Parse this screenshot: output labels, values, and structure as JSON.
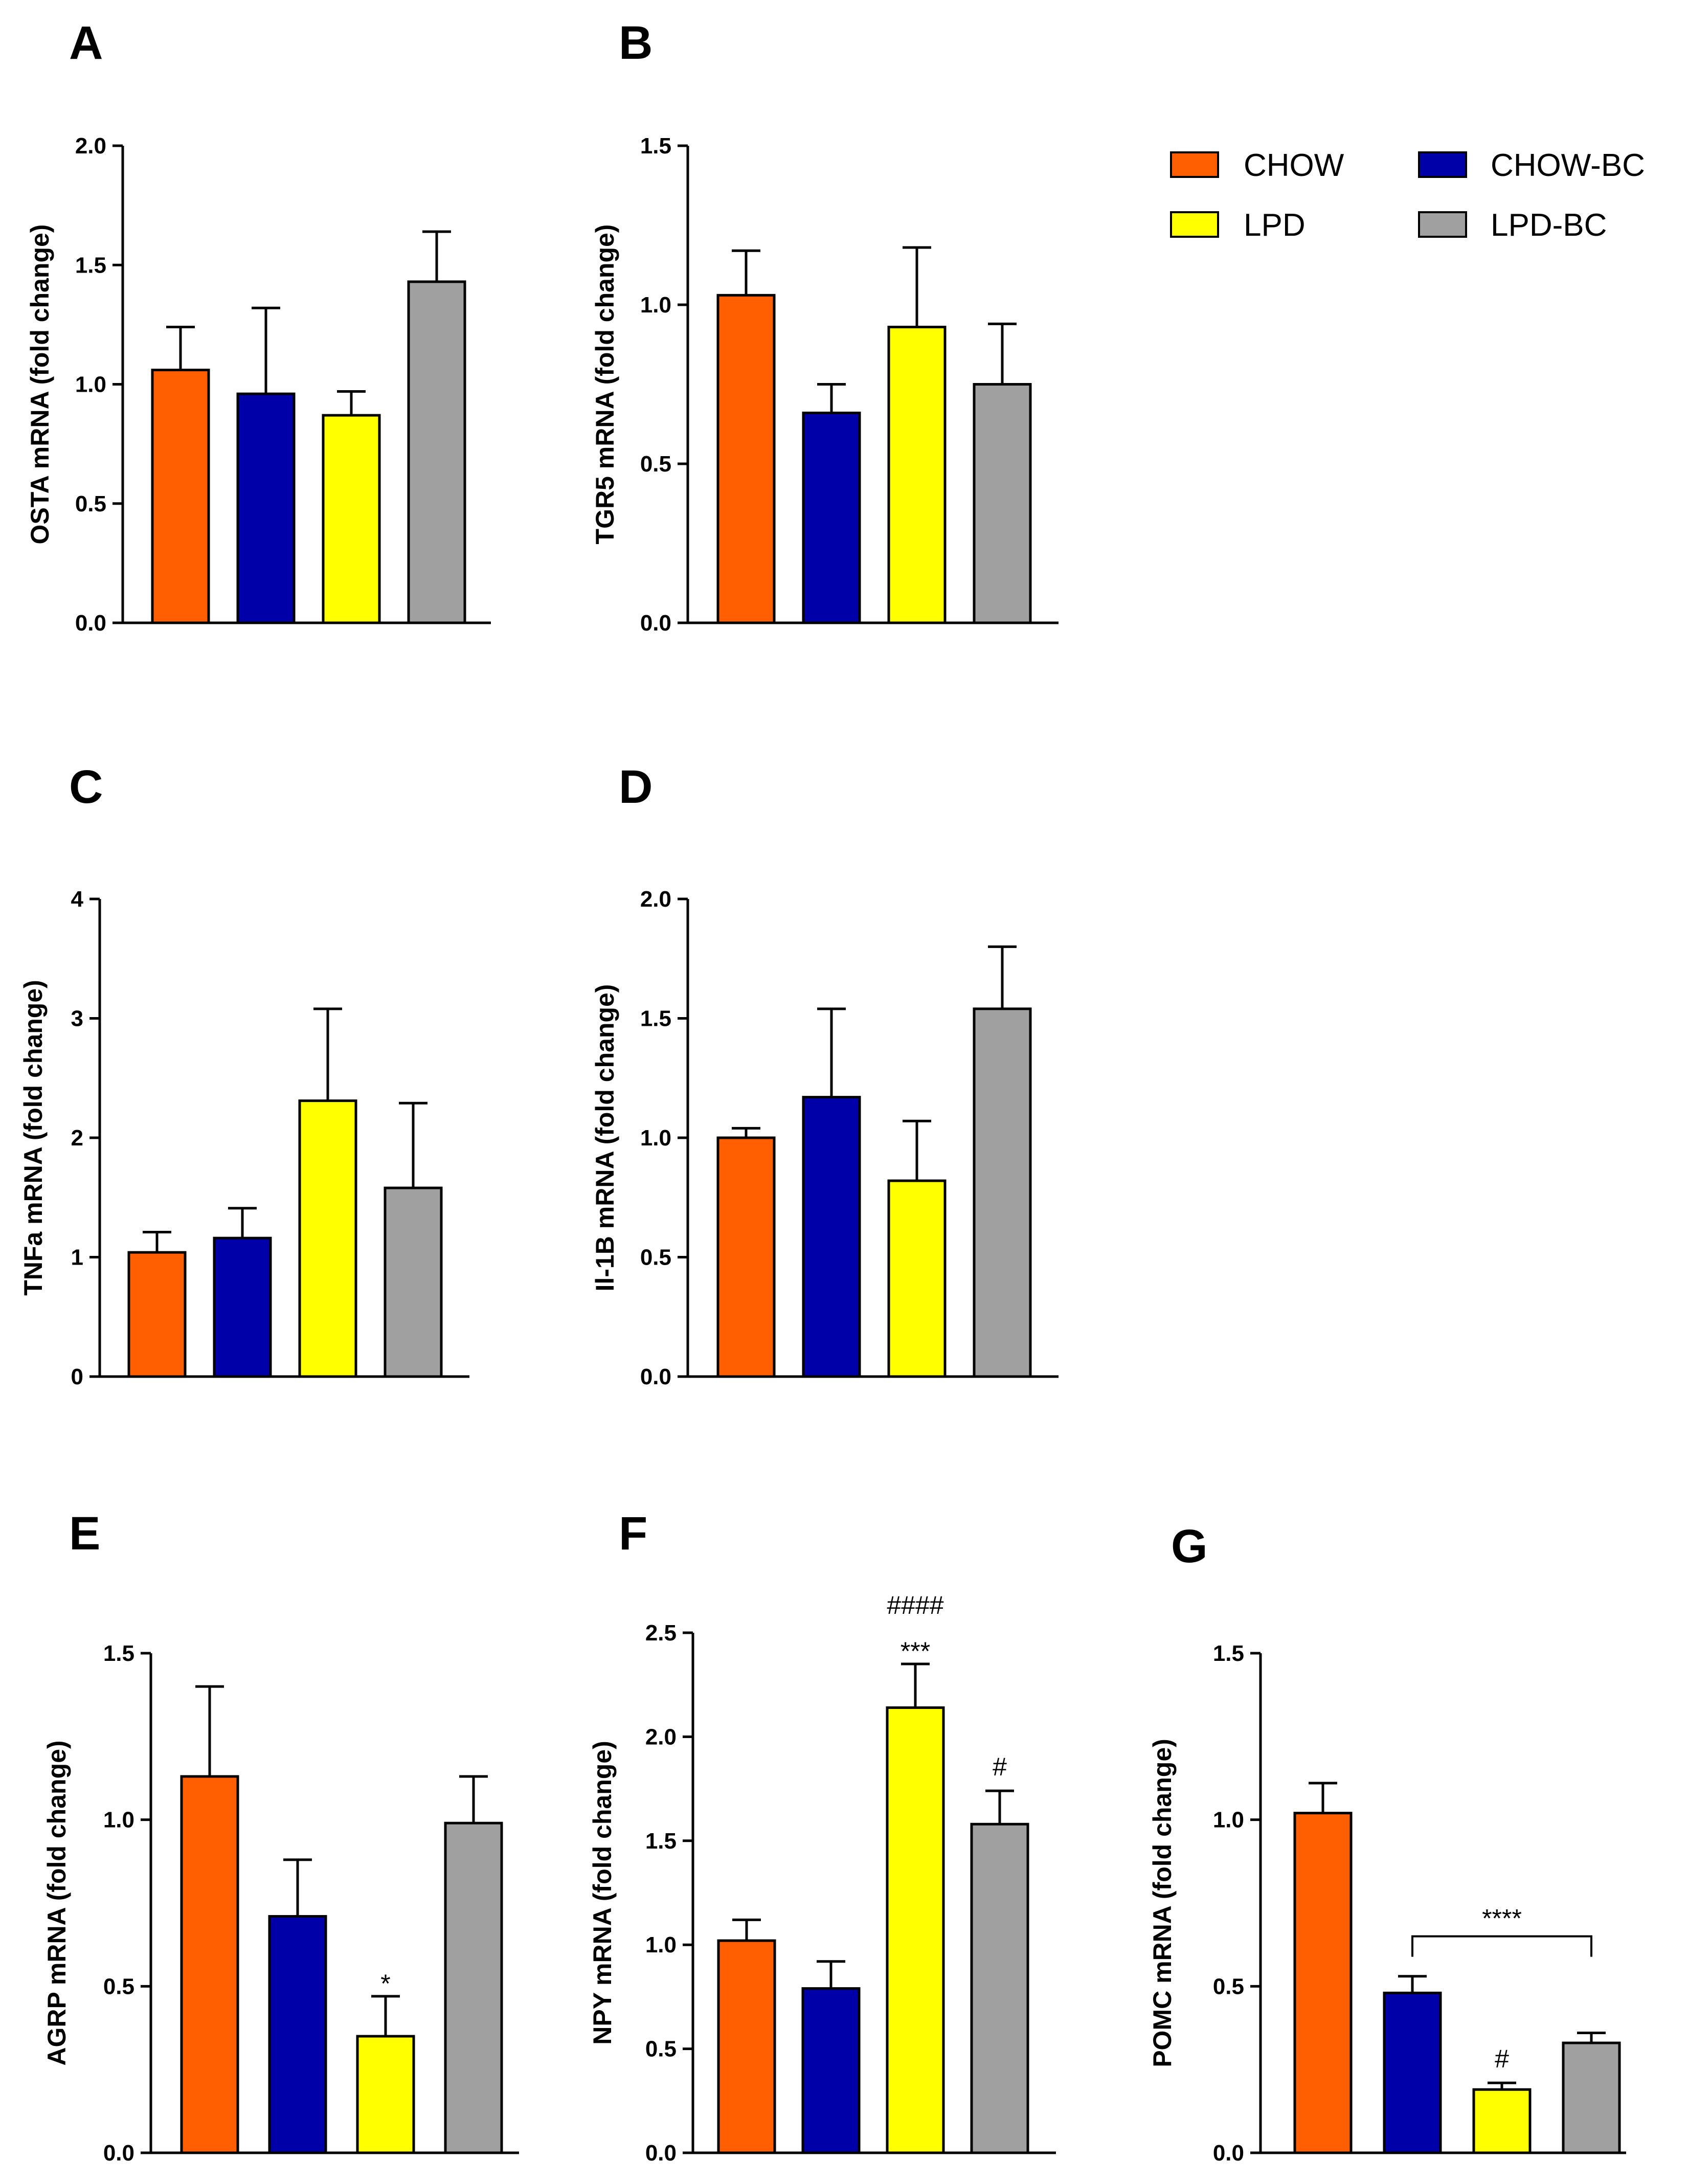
{
  "legend": {
    "entries": [
      {
        "label": "CHOW",
        "color": "#FF5F00"
      },
      {
        "label": "CHOW-BC",
        "color": "#0000A8"
      },
      {
        "label": "LPD",
        "color": "#FFFF00"
      },
      {
        "label": "LPD-BC",
        "color": "#A0A0A0"
      }
    ]
  },
  "chart_data": [
    {
      "panel": "A",
      "type": "bar",
      "ylabel": "OSTA mRNA (fold change)",
      "ylim": [
        0,
        2.0
      ],
      "yticks": [
        "0.0",
        "0.5",
        "1.0",
        "1.5",
        "2.0"
      ],
      "categories": [
        "CHOW",
        "CHOW-BC",
        "LPD",
        "LPD-BC"
      ],
      "values": [
        1.06,
        0.96,
        0.87,
        1.43
      ],
      "errors": [
        0.18,
        0.36,
        0.1,
        0.21
      ],
      "annotations": []
    },
    {
      "panel": "B",
      "type": "bar",
      "ylabel": "TGR5 mRNA (fold change)",
      "ylim": [
        0,
        1.5
      ],
      "yticks": [
        "0.0",
        "0.5",
        "1.0",
        "1.5"
      ],
      "categories": [
        "CHOW",
        "CHOW-BC",
        "LPD",
        "LPD-BC"
      ],
      "values": [
        1.03,
        0.66,
        0.93,
        0.75
      ],
      "errors": [
        0.14,
        0.09,
        0.25,
        0.19
      ],
      "annotations": []
    },
    {
      "panel": "C",
      "type": "bar",
      "ylabel": "TNFa mRNA (fold change)",
      "ylim": [
        0,
        4
      ],
      "yticks": [
        "0",
        "1",
        "2",
        "3",
        "4"
      ],
      "categories": [
        "CHOW",
        "CHOW-BC",
        "LPD",
        "LPD-BC"
      ],
      "values": [
        1.04,
        1.16,
        2.31,
        1.58
      ],
      "errors": [
        0.17,
        0.25,
        0.77,
        0.71
      ],
      "annotations": []
    },
    {
      "panel": "D",
      "type": "bar",
      "ylabel": "Il-1B mRNA (fold change)",
      "ylim": [
        0,
        2.0
      ],
      "yticks": [
        "0.0",
        "0.5",
        "1.0",
        "1.5",
        "2.0"
      ],
      "categories": [
        "CHOW",
        "CHOW-BC",
        "LPD",
        "LPD-BC"
      ],
      "values": [
        1.0,
        1.17,
        0.82,
        1.54
      ],
      "errors": [
        0.04,
        0.37,
        0.25,
        0.26
      ],
      "annotations": []
    },
    {
      "panel": "E",
      "type": "bar",
      "ylabel": "AGRP mRNA (fold change)",
      "ylim": [
        0,
        1.5
      ],
      "yticks": [
        "0.0",
        "0.5",
        "1.0",
        "1.5"
      ],
      "categories": [
        "CHOW",
        "CHOW-BC",
        "LPD",
        "LPD-BC"
      ],
      "values": [
        1.13,
        0.71,
        0.35,
        0.99
      ],
      "errors": [
        0.27,
        0.17,
        0.12,
        0.14
      ],
      "annotations": [
        {
          "bar": 2,
          "lines": [
            "*"
          ]
        }
      ]
    },
    {
      "panel": "F",
      "type": "bar",
      "ylabel": "NPY mRNA (fold change)",
      "ylim": [
        0,
        2.5
      ],
      "yticks": [
        "0.0",
        "0.5",
        "1.0",
        "1.5",
        "2.0",
        "2.5"
      ],
      "categories": [
        "CHOW",
        "CHOW-BC",
        "LPD",
        "LPD-BC"
      ],
      "values": [
        1.02,
        0.79,
        2.14,
        1.58
      ],
      "errors": [
        0.1,
        0.13,
        0.21,
        0.16
      ],
      "annotations": [
        {
          "bar": 2,
          "lines": [
            "####",
            "***"
          ]
        },
        {
          "bar": 3,
          "lines": [
            "#"
          ]
        }
      ]
    },
    {
      "panel": "G",
      "type": "bar",
      "ylabel": "POMC mRNA (fold change)",
      "ylim": [
        0,
        1.5
      ],
      "yticks": [
        "0.0",
        "0.5",
        "1.0",
        "1.5"
      ],
      "categories": [
        "CHOW",
        "CHOW-BC",
        "LPD",
        "LPD-BC"
      ],
      "values": [
        1.02,
        0.48,
        0.19,
        0.33
      ],
      "errors": [
        0.09,
        0.05,
        0.02,
        0.03
      ],
      "annotations": [
        {
          "bar": 2,
          "lines": [
            "#"
          ]
        }
      ],
      "brackets": [
        {
          "from": 1,
          "to": 3,
          "label": "****",
          "y": 0.65
        }
      ]
    }
  ]
}
